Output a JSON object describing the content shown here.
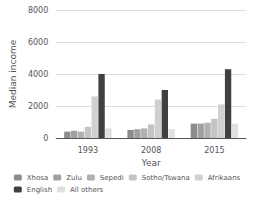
{
  "chart_data": {
    "type": "bar",
    "categories": [
      "1993",
      "2008",
      "2015"
    ],
    "series": [
      {
        "name": "Xhosa",
        "color": "#8c8c8c",
        "values": [
          400,
          500,
          900
        ]
      },
      {
        "name": "Zulu",
        "color": "#a0a0a0",
        "values": [
          450,
          550,
          900
        ]
      },
      {
        "name": "Sepedi",
        "color": "#b0b0b0",
        "values": [
          400,
          600,
          950
        ]
      },
      {
        "name": "Sotho/Tswana",
        "color": "#c4c4c4",
        "values": [
          700,
          850,
          1200
        ]
      },
      {
        "name": "Afrikaans",
        "color": "#d0d0d0",
        "values": [
          2600,
          2400,
          2100
        ]
      },
      {
        "name": "English",
        "color": "#404040",
        "values": [
          4000,
          3000,
          4300
        ]
      },
      {
        "name": "All others",
        "color": "#e0e0e0",
        "values": [
          600,
          550,
          900
        ]
      }
    ],
    "xlabel": "Year",
    "ylabel": "Median income",
    "ylim": [
      0,
      8000
    ],
    "yticks": [
      0,
      2000,
      4000,
      6000,
      8000
    ],
    "grid": true,
    "legend": "bottom"
  }
}
